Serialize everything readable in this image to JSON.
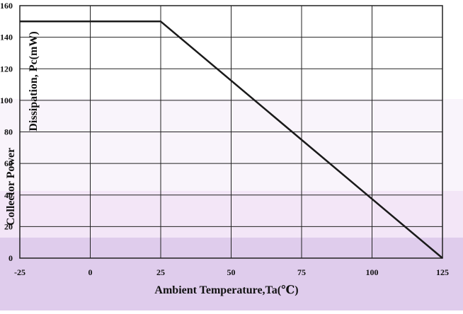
{
  "chart_data": {
    "type": "line",
    "title": "",
    "xlabel": "Ambient Temperature,Ta(℃)",
    "ylabel_top": "Dissipation, Pc(mW)",
    "ylabel_bottom": "Collector Power",
    "xlim": [
      -25,
      125
    ],
    "ylim": [
      0,
      160
    ],
    "x_ticks": [
      "-25",
      "0",
      "25",
      "50",
      "75",
      "100",
      "125"
    ],
    "y_ticks": [
      "0",
      "20",
      "40",
      "60",
      "80",
      "100",
      "120",
      "140",
      "160"
    ],
    "grid": true,
    "series": [
      {
        "x": [
          -25,
          25,
          125
        ],
        "y": [
          150,
          150,
          0
        ]
      }
    ],
    "colors": {
      "line": "#1a1a1a",
      "grid": "#222222",
      "overlay": "#d9c3e9"
    }
  }
}
